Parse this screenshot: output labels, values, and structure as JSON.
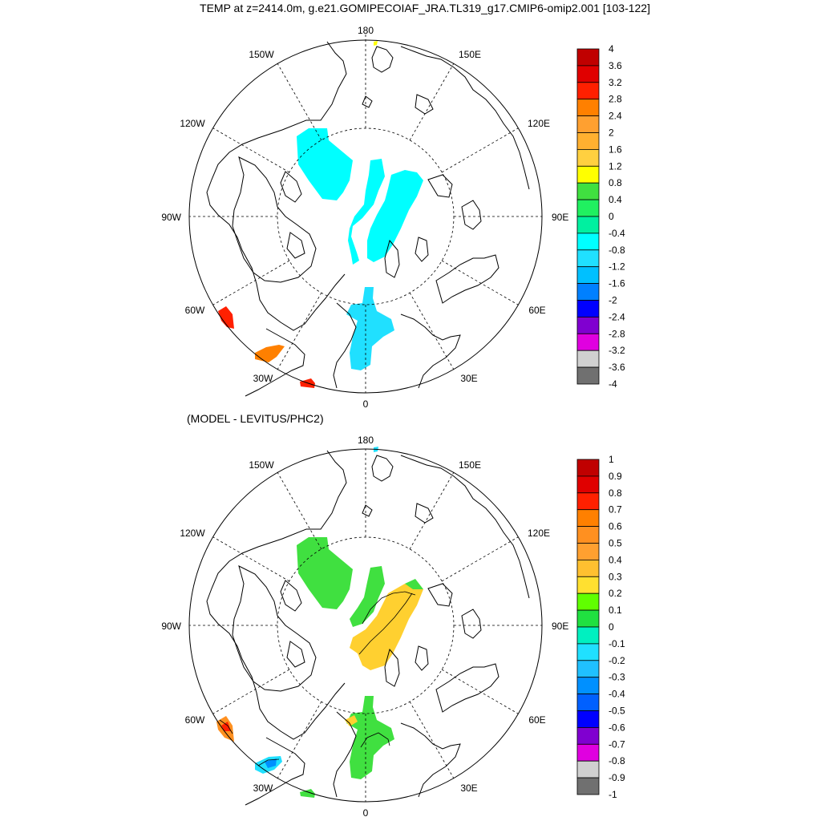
{
  "title": "TEMP at z=2414.0m, g.e21.GOMIPECOIAF_JRA.TL319_g17.CMIP6-omip2.001 [103-122]",
  "panels": [
    {
      "id": "top",
      "subtitle": "",
      "projection": "north-polar-stereographic",
      "lon_labels": {
        "top": "180",
        "bottom": "0",
        "left": "90W",
        "right": "90E",
        "ul1": "150W",
        "ul2": "120W",
        "ur1": "150E",
        "ur2": "120E",
        "ll1": "60W",
        "ll2": "30W",
        "lr1": "60E",
        "lr2": "30E"
      },
      "colorbar": {
        "labels": [
          "4",
          "3.6",
          "3.2",
          "2.8",
          "2.4",
          "2",
          "1.6",
          "1.2",
          "0.8",
          "0.4",
          "0",
          "-0.4",
          "-0.8",
          "-1.2",
          "-1.6",
          "-2",
          "-2.4",
          "-2.8",
          "-3.2",
          "-3.6",
          "-4"
        ],
        "colors": [
          "#c00000",
          "#e00000",
          "#ff2000",
          "#ff8000",
          "#ffa030",
          "#ffb030",
          "#ffd040",
          "#ffff00",
          "#40e040",
          "#20f060",
          "#00f0a0",
          "#00ffff",
          "#20e0ff",
          "#00c0ff",
          "#0080ff",
          "#0000ff",
          "#8000d0",
          "#e000e0",
          "#d0d0d0",
          "#707070"
        ]
      },
      "fill_colors": {
        "main": "#00ffff",
        "lower": "#20e0ff",
        "red": "#ff2000",
        "orange": "#ff8000"
      }
    },
    {
      "id": "bottom",
      "subtitle": "(MODEL - LEVITUS/PHC2)",
      "projection": "north-polar-stereographic",
      "lon_labels": {
        "top": "180",
        "bottom": "0",
        "left": "90W",
        "right": "90E",
        "ul1": "150W",
        "ul2": "120W",
        "ur1": "150E",
        "ur2": "120E",
        "ll1": "60W",
        "ll2": "30W",
        "lr1": "60E",
        "lr2": "30E"
      },
      "colorbar": {
        "labels": [
          "1",
          "0.9",
          "0.8",
          "0.7",
          "0.6",
          "0.5",
          "0.4",
          "0.3",
          "0.2",
          "0.1",
          "0",
          "-0.1",
          "-0.2",
          "-0.3",
          "-0.4",
          "-0.5",
          "-0.6",
          "-0.7",
          "-0.8",
          "-0.9",
          "-1"
        ],
        "colors": [
          "#c00000",
          "#e00000",
          "#ff2000",
          "#ff8000",
          "#ff9020",
          "#ffa030",
          "#ffc030",
          "#ffe030",
          "#60ff00",
          "#20e040",
          "#00f0c0",
          "#20e0ff",
          "#20c0ff",
          "#0090ff",
          "#0060ff",
          "#0000ff",
          "#8000d0",
          "#e000e0",
          "#d0d0d0",
          "#707070"
        ]
      },
      "fill_colors": {
        "green": "#40e040",
        "yellow": "#ffd030"
      }
    }
  ]
}
